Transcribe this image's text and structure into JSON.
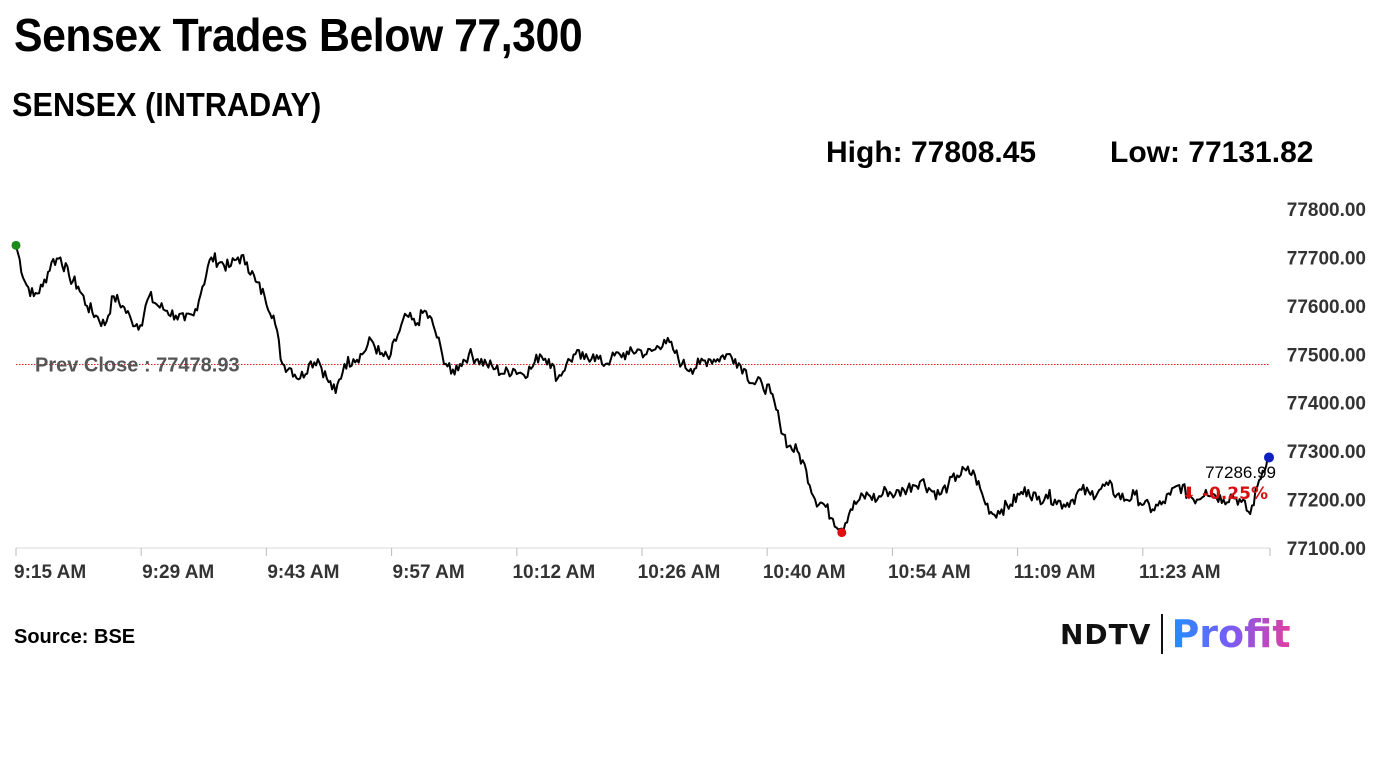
{
  "header": {
    "headline": "Sensex Trades Below 77,300",
    "subtitle": "SENSEX (INTRADAY)"
  },
  "stats": {
    "high": "High: 77808.45",
    "low": "Low: 77131.82"
  },
  "footer": {
    "source": "Source: BSE",
    "logo_left": "NDTV",
    "logo_right": "Profit"
  },
  "colors": {
    "line": "#000000",
    "prev_close": "#d62020",
    "open_marker": "#1a8a1a",
    "low_marker": "#e01010",
    "last_marker": "#1020c0",
    "change_text": "#d41010"
  },
  "chart_data": {
    "type": "line",
    "title": "SENSEX (INTRADAY)",
    "xlabel": "",
    "ylabel": "",
    "x_tick_labels": [
      "9:15 AM",
      "9:29 AM",
      "9:43 AM",
      "9:57 AM",
      "10:12 AM",
      "10:26 AM",
      "10:40 AM",
      "10:54 AM",
      "11:09 AM",
      "11:23 AM"
    ],
    "y_tick_labels": [
      "77800.00",
      "77700.00",
      "77600.00",
      "77500.00",
      "77400.00",
      "77300.00",
      "77200.00",
      "77100.00"
    ],
    "ylim": [
      77100,
      77800
    ],
    "grid": false,
    "prev_close": 77478.93,
    "prev_close_label": "Prev Close : 77478.93",
    "high": 77808.45,
    "low": 77131.82,
    "last_value_label": "77286.99",
    "change_label": "⬇ -0.25%",
    "series": [
      {
        "name": "SENSEX",
        "points": [
          [
            "9:15",
            77725
          ],
          [
            "9:16",
            77650
          ],
          [
            "9:17",
            77620
          ],
          [
            "9:18",
            77640
          ],
          [
            "9:19",
            77690
          ],
          [
            "9:20",
            77700
          ],
          [
            "9:21",
            77660
          ],
          [
            "9:22",
            77640
          ],
          [
            "9:23",
            77600
          ],
          [
            "9:24",
            77580
          ],
          [
            "9:25",
            77560
          ],
          [
            "9:26",
            77620
          ],
          [
            "9:27",
            77600
          ],
          [
            "9:28",
            77570
          ],
          [
            "9:29",
            77560
          ],
          [
            "9:30",
            77620
          ],
          [
            "9:31",
            77600
          ],
          [
            "9:32",
            77590
          ],
          [
            "9:33",
            77580
          ],
          [
            "9:34",
            77570
          ],
          [
            "9:35",
            77580
          ],
          [
            "9:36",
            77640
          ],
          [
            "9:37",
            77700
          ],
          [
            "9:38",
            77690
          ],
          [
            "9:39",
            77680
          ],
          [
            "9:40",
            77700
          ],
          [
            "9:41",
            77690
          ],
          [
            "9:42",
            77650
          ],
          [
            "9:43",
            77620
          ],
          [
            "9:44",
            77580
          ],
          [
            "9:45",
            77480
          ],
          [
            "9:46",
            77470
          ],
          [
            "9:47",
            77450
          ],
          [
            "9:48",
            77480
          ],
          [
            "9:49",
            77490
          ],
          [
            "9:50",
            77450
          ],
          [
            "9:51",
            77420
          ],
          [
            "9:52",
            77480
          ],
          [
            "9:53",
            77490
          ],
          [
            "9:54",
            77500
          ],
          [
            "9:55",
            77530
          ],
          [
            "9:56",
            77500
          ],
          [
            "9:57",
            77490
          ],
          [
            "9:58",
            77540
          ],
          [
            "9:59",
            77580
          ],
          [
            "10:00",
            77560
          ],
          [
            "10:01",
            77590
          ],
          [
            "10:02",
            77560
          ],
          [
            "10:03",
            77500
          ],
          [
            "10:04",
            77460
          ],
          [
            "10:05",
            77480
          ],
          [
            "10:06",
            77500
          ],
          [
            "10:07",
            77490
          ],
          [
            "10:08",
            77480
          ],
          [
            "10:09",
            77470
          ],
          [
            "10:10",
            77460
          ],
          [
            "10:11",
            77470
          ],
          [
            "10:12",
            77460
          ],
          [
            "10:13",
            77470
          ],
          [
            "10:14",
            77500
          ],
          [
            "10:15",
            77490
          ],
          [
            "10:16",
            77450
          ],
          [
            "10:17",
            77480
          ],
          [
            "10:18",
            77500
          ],
          [
            "10:19",
            77490
          ],
          [
            "10:20",
            77500
          ],
          [
            "10:21",
            77480
          ],
          [
            "10:22",
            77490
          ],
          [
            "10:23",
            77500
          ],
          [
            "10:24",
            77500
          ],
          [
            "10:25",
            77510
          ],
          [
            "10:26",
            77500
          ],
          [
            "10:27",
            77510
          ],
          [
            "10:28",
            77530
          ],
          [
            "10:29",
            77510
          ],
          [
            "10:30",
            77480
          ],
          [
            "10:31",
            77470
          ],
          [
            "10:32",
            77480
          ],
          [
            "10:33",
            77490
          ],
          [
            "10:34",
            77490
          ],
          [
            "10:35",
            77500
          ],
          [
            "10:36",
            77490
          ],
          [
            "10:37",
            77470
          ],
          [
            "10:38",
            77440
          ],
          [
            "10:39",
            77440
          ],
          [
            "10:40",
            77420
          ],
          [
            "10:41",
            77360
          ],
          [
            "10:42",
            77310
          ],
          [
            "10:43",
            77300
          ],
          [
            "10:44",
            77260
          ],
          [
            "10:45",
            77200
          ],
          [
            "10:46",
            77190
          ],
          [
            "10:47",
            77160
          ],
          [
            "10:48",
            77140
          ],
          [
            "10:49",
            77180
          ],
          [
            "10:50",
            77200
          ],
          [
            "10:51",
            77210
          ],
          [
            "10:52",
            77200
          ],
          [
            "10:53",
            77220
          ],
          [
            "10:54",
            77210
          ],
          [
            "10:55",
            77220
          ],
          [
            "10:56",
            77230
          ],
          [
            "10:57",
            77240
          ],
          [
            "10:58",
            77220
          ],
          [
            "10:59",
            77210
          ],
          [
            "11:00",
            77230
          ],
          [
            "11:01",
            77250
          ],
          [
            "11:02",
            77260
          ],
          [
            "11:03",
            77250
          ],
          [
            "11:04",
            77200
          ],
          [
            "11:05",
            77170
          ],
          [
            "11:06",
            77180
          ],
          [
            "11:07",
            77190
          ],
          [
            "11:08",
            77210
          ],
          [
            "11:09",
            77220
          ],
          [
            "11:10",
            77200
          ],
          [
            "11:11",
            77210
          ],
          [
            "11:12",
            77200
          ],
          [
            "11:13",
            77190
          ],
          [
            "11:14",
            77200
          ],
          [
            "11:15",
            77220
          ],
          [
            "11:16",
            77210
          ],
          [
            "11:17",
            77220
          ],
          [
            "11:18",
            77230
          ],
          [
            "11:19",
            77210
          ],
          [
            "11:20",
            77200
          ],
          [
            "11:21",
            77210
          ],
          [
            "11:22",
            77190
          ],
          [
            "11:23",
            77180
          ],
          [
            "11:24",
            77190
          ],
          [
            "11:25",
            77210
          ],
          [
            "11:26",
            77230
          ],
          [
            "11:27",
            77210
          ],
          [
            "11:28",
            77200
          ],
          [
            "11:29",
            77220
          ],
          [
            "11:30",
            77210
          ],
          [
            "11:31",
            77200
          ],
          [
            "11:32",
            77210
          ],
          [
            "11:33",
            77195
          ],
          [
            "11:34",
            77170
          ],
          [
            "11:35",
            77240
          ],
          [
            "11:36",
            77290
          ]
        ]
      }
    ]
  }
}
